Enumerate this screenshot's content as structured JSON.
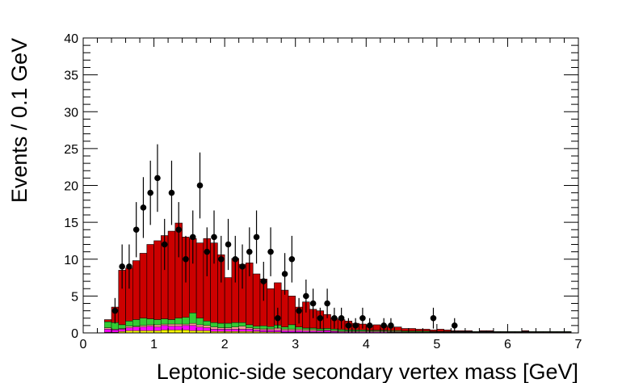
{
  "chart_data": {
    "type": "bar",
    "xlabel": "Leptonic-side secondary vertex mass [GeV]",
    "ylabel": "Events / 0.1 GeV",
    "xlim": [
      0,
      7
    ],
    "ylim": [
      0,
      40
    ],
    "x_ticks": [
      0,
      1,
      2,
      3,
      4,
      5,
      6,
      7
    ],
    "y_ticks": [
      0,
      5,
      10,
      15,
      20,
      25,
      30,
      35,
      40
    ],
    "bin_width": 0.1,
    "colors": {
      "signal": "#cc0000",
      "bkg_green": "#33cc33",
      "bkg_magenta": "#ff00ff",
      "bkg_yellow": "#ffff00",
      "bkg_pink": "#ff9999",
      "data": "#000000"
    },
    "mc_stack": {
      "bin_low_edges": [
        0.3,
        0.4,
        0.5,
        0.6,
        0.7,
        0.8,
        0.9,
        1.0,
        1.1,
        1.2,
        1.3,
        1.4,
        1.5,
        1.6,
        1.7,
        1.8,
        1.9,
        2.0,
        2.1,
        2.2,
        2.3,
        2.4,
        2.5,
        2.6,
        2.7,
        2.8,
        2.9,
        3.0,
        3.1,
        3.2,
        3.3,
        3.4,
        3.5,
        3.6,
        3.7,
        3.8,
        3.9,
        4.0,
        4.1,
        4.2,
        4.3,
        4.4,
        4.5,
        4.6,
        4.7,
        4.8,
        4.9,
        5.0,
        5.1,
        5.2,
        5.3,
        5.4,
        5.5,
        5.6,
        5.7,
        5.8,
        5.9,
        6.0,
        6.1,
        6.2,
        6.3,
        6.4,
        6.5,
        6.6,
        6.7,
        6.8
      ],
      "total": [
        1.8,
        3.5,
        8.5,
        8.8,
        9.8,
        10.8,
        12.0,
        12.5,
        13.2,
        13.8,
        14.9,
        13.0,
        12.8,
        12.2,
        12.8,
        12.2,
        10.6,
        7.5,
        10.1,
        9.3,
        9.5,
        8.0,
        7.3,
        6.0,
        6.8,
        5.8,
        5.0,
        3.5,
        4.2,
        3.2,
        3.0,
        2.5,
        2.0,
        1.8,
        1.6,
        1.3,
        1.2,
        1.0,
        1.1,
        1.0,
        0.8,
        0.8,
        0.6,
        0.6,
        0.5,
        0.5,
        0.4,
        0.5,
        0.4,
        0.3,
        0.3,
        0.3,
        0.2,
        0.3,
        0.3,
        0.2,
        0.2,
        0.2,
        0.15,
        0.3,
        0.15,
        0.1,
        0.1,
        0.1,
        0.1,
        0.2
      ],
      "green": [
        0.8,
        0.9,
        0.5,
        0.7,
        0.9,
        1.0,
        0.8,
        0.7,
        0.7,
        0.6,
        0.8,
        0.9,
        1.4,
        0.9,
        0.6,
        0.6,
        0.6,
        0.6,
        0.6,
        0.5,
        0.4,
        0.3,
        0.4,
        0.3,
        0.4,
        0.3,
        0.6,
        0.3,
        0.2,
        0.2,
        0.2,
        0.2,
        0.2,
        0.2,
        0.15,
        0.15,
        0.15,
        0.1,
        0.1,
        0.1,
        0.1,
        0.1,
        0.1,
        0.1,
        0.1,
        0.1,
        0.05,
        0.05,
        0.05,
        0.05,
        0.05,
        0.05,
        0.05,
        0.05,
        0.05,
        0.05,
        0.05,
        0.05,
        0.05,
        0.05,
        0.05,
        0.05,
        0.05,
        0.05,
        0.05,
        0.05
      ],
      "magenta": [
        0.4,
        0.3,
        0.3,
        0.4,
        0.5,
        0.5,
        0.6,
        0.5,
        0.6,
        0.5,
        0.5,
        0.6,
        0.7,
        0.5,
        0.4,
        0.3,
        0.3,
        0.3,
        0.3,
        0.3,
        0.3,
        0.2,
        0.2,
        0.2,
        0.2,
        0.2,
        0.2,
        0.2,
        0.15,
        0.15,
        0.15,
        0.2,
        0.15,
        0.1,
        0.1,
        0.1,
        0.1,
        0.1,
        0.1,
        0.1,
        0.05,
        0.05,
        0.05,
        0.05,
        0.05,
        0.05,
        0.05,
        0.05,
        0.05,
        0.05,
        0.05,
        0.05,
        0.05,
        0.05,
        0.05,
        0.05,
        0.05,
        0.05,
        0.05,
        0.05,
        0.05,
        0.05,
        0.05,
        0.05,
        0.05,
        0.05
      ],
      "yellow": [
        0.1,
        0.1,
        0.2,
        0.3,
        0.3,
        0.3,
        0.3,
        0.3,
        0.4,
        0.4,
        0.4,
        0.4,
        0.3,
        0.3,
        0.3,
        0.2,
        0.2,
        0.2,
        0.2,
        0.2,
        0.2,
        0.2,
        0.15,
        0.15,
        0.15,
        0.1,
        0.1,
        0.1,
        0.1,
        0.1,
        0.1,
        0.1,
        0.05,
        0.05,
        0.05,
        0.05,
        0.05,
        0.05,
        0.05,
        0.05,
        0.05,
        0.05,
        0.05,
        0.05,
        0.05,
        0.05,
        0.05,
        0.05,
        0.05,
        0.05,
        0.05,
        0.05,
        0.05,
        0.05,
        0.05,
        0.05,
        0.05,
        0.05,
        0.05,
        0.05,
        0.05,
        0.05,
        0.05,
        0.05,
        0.05,
        0.05
      ],
      "pink": [
        0.2,
        0.1,
        0.1,
        0.2,
        0.1,
        0.2,
        0.2,
        0.3,
        0.2,
        0.3,
        0.3,
        0.2,
        0.3,
        0.3,
        0.3,
        0.3,
        0.2,
        0.2,
        0.3,
        0.4,
        0.2,
        0.2,
        0.2,
        0.2,
        0.3,
        0.2,
        0.2,
        0.2,
        0.2,
        0.2,
        0.1,
        0.1,
        0.1,
        0.1,
        0.1,
        0.1,
        0.1,
        0.1,
        0.1,
        0.1,
        0.1,
        0.1,
        0.05,
        0.05,
        0.05,
        0.05,
        0.05,
        0.05,
        0.05,
        0.05,
        0.05,
        0.05,
        0.05,
        0.05,
        0.05,
        0.05,
        0.05,
        0.05,
        0.05,
        0.05,
        0.05,
        0.05,
        0.05,
        0.05,
        0.05,
        0.05
      ]
    },
    "data_points": [
      {
        "x": 0.45,
        "y": 3
      },
      {
        "x": 0.55,
        "y": 9
      },
      {
        "x": 0.65,
        "y": 9
      },
      {
        "x": 0.75,
        "y": 14
      },
      {
        "x": 0.85,
        "y": 17
      },
      {
        "x": 0.95,
        "y": 19
      },
      {
        "x": 1.05,
        "y": 21
      },
      {
        "x": 1.15,
        "y": 12
      },
      {
        "x": 1.25,
        "y": 19
      },
      {
        "x": 1.35,
        "y": 14
      },
      {
        "x": 1.45,
        "y": 10
      },
      {
        "x": 1.55,
        "y": 13
      },
      {
        "x": 1.65,
        "y": 20
      },
      {
        "x": 1.75,
        "y": 11
      },
      {
        "x": 1.85,
        "y": 13
      },
      {
        "x": 1.95,
        "y": 10
      },
      {
        "x": 2.05,
        "y": 12
      },
      {
        "x": 2.15,
        "y": 10
      },
      {
        "x": 2.25,
        "y": 9
      },
      {
        "x": 2.35,
        "y": 11
      },
      {
        "x": 2.45,
        "y": 13
      },
      {
        "x": 2.55,
        "y": 7
      },
      {
        "x": 2.65,
        "y": 11
      },
      {
        "x": 2.75,
        "y": 2
      },
      {
        "x": 2.85,
        "y": 8
      },
      {
        "x": 2.95,
        "y": 10
      },
      {
        "x": 3.05,
        "y": 3
      },
      {
        "x": 3.15,
        "y": 5
      },
      {
        "x": 3.25,
        "y": 4
      },
      {
        "x": 3.35,
        "y": 2
      },
      {
        "x": 3.45,
        "y": 4
      },
      {
        "x": 3.55,
        "y": 2
      },
      {
        "x": 3.65,
        "y": 2
      },
      {
        "x": 3.75,
        "y": 1
      },
      {
        "x": 3.85,
        "y": 1
      },
      {
        "x": 3.95,
        "y": 2
      },
      {
        "x": 4.05,
        "y": 1
      },
      {
        "x": 4.25,
        "y": 1
      },
      {
        "x": 4.35,
        "y": 1
      },
      {
        "x": 4.95,
        "y": 2
      },
      {
        "x": 5.25,
        "y": 1
      }
    ]
  }
}
